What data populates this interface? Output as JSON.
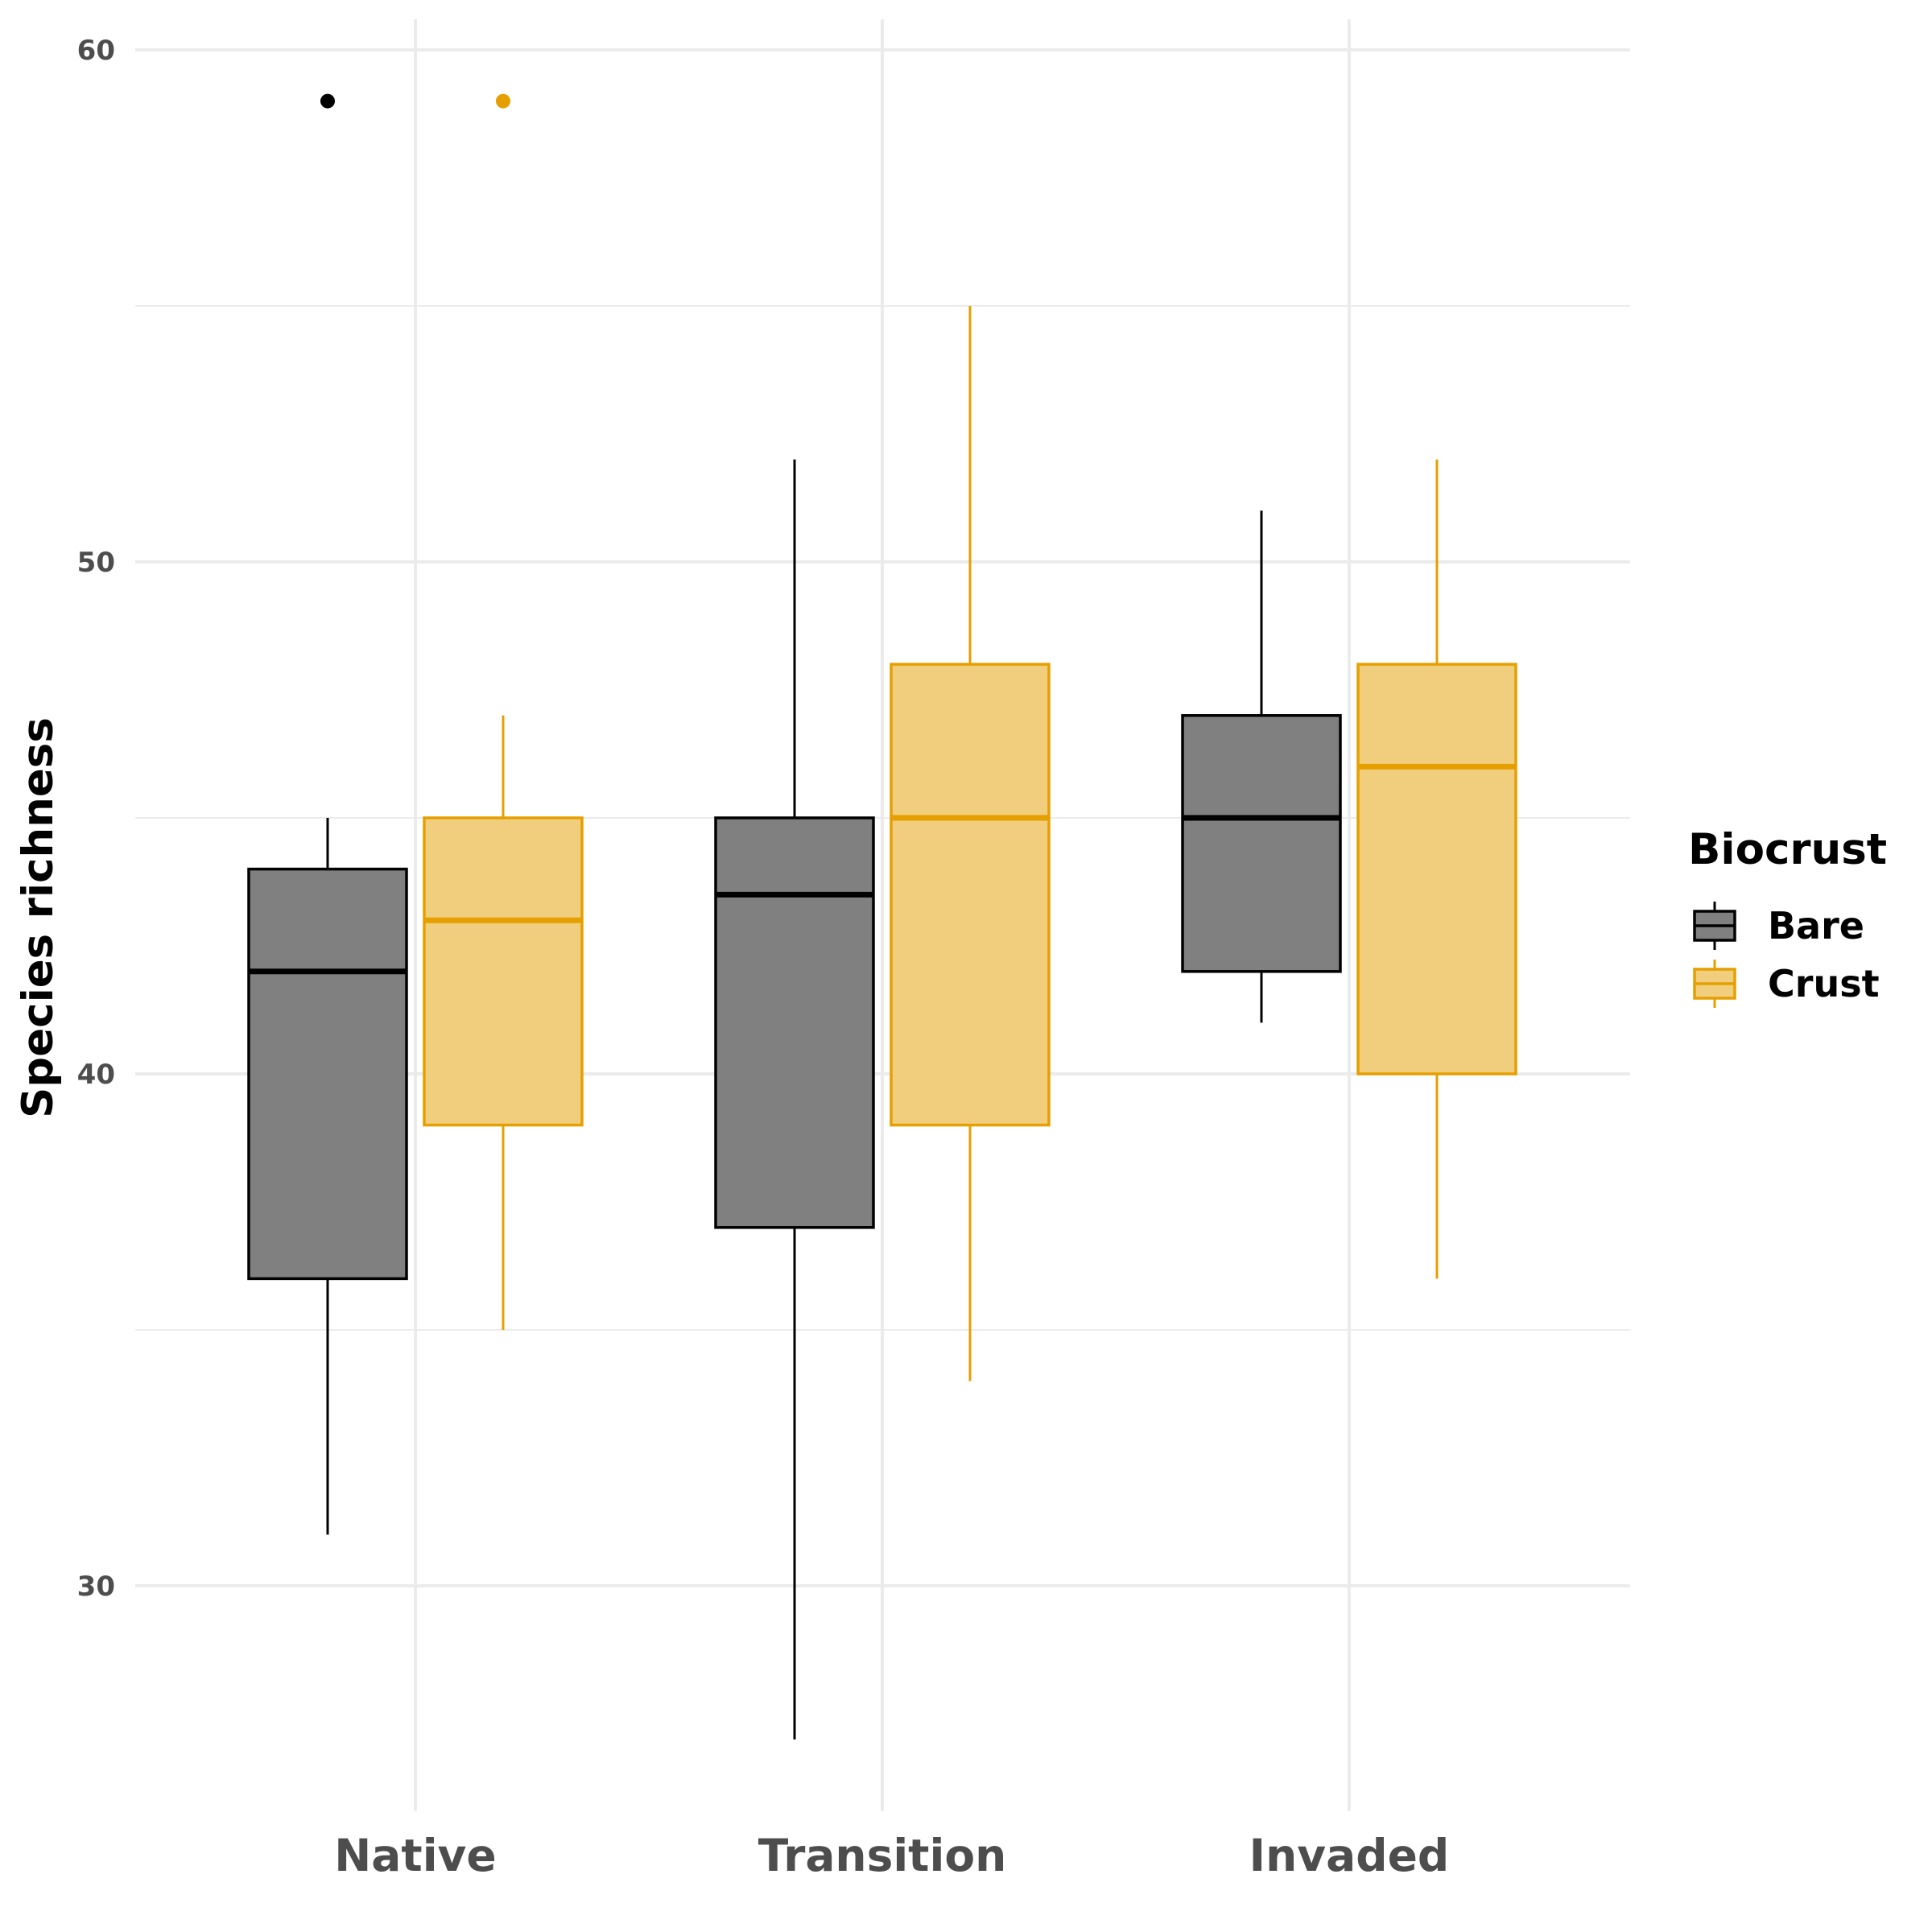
{
  "chart_data": {
    "type": "boxplot",
    "categories": [
      "Native",
      "Transition",
      "Invaded"
    ],
    "ylabel": "Species richness",
    "xlabel": "",
    "ylim": [
      25.6,
      60.6
    ],
    "yticks": [
      30,
      40,
      50,
      60
    ],
    "grid": true,
    "legend": {
      "title": "Biocrust",
      "position": "right"
    },
    "series": [
      {
        "name": "Bare",
        "fill": "#808080",
        "stroke": "#000000",
        "boxes": [
          {
            "whisker_low": 31,
            "q1": 36,
            "median": 42,
            "q3": 44,
            "whisker_high": 45,
            "outliers": [
              59
            ]
          },
          {
            "whisker_low": 27,
            "q1": 37,
            "median": 43.5,
            "q3": 45,
            "whisker_high": 52,
            "outliers": []
          },
          {
            "whisker_low": 41,
            "q1": 42,
            "median": 45,
            "q3": 47,
            "whisker_high": 51,
            "outliers": []
          }
        ]
      },
      {
        "name": "Crust",
        "fill": "#f0ce7e",
        "stroke": "#e69f00",
        "boxes": [
          {
            "whisker_low": 35,
            "q1": 39,
            "median": 43,
            "q3": 45,
            "whisker_high": 47,
            "outliers": [
              59
            ]
          },
          {
            "whisker_low": 34,
            "q1": 39,
            "median": 45,
            "q3": 48,
            "whisker_high": 55,
            "outliers": []
          },
          {
            "whisker_low": 36,
            "q1": 40,
            "median": 46,
            "q3": 48,
            "whisker_high": 52,
            "outliers": []
          }
        ]
      }
    ]
  }
}
